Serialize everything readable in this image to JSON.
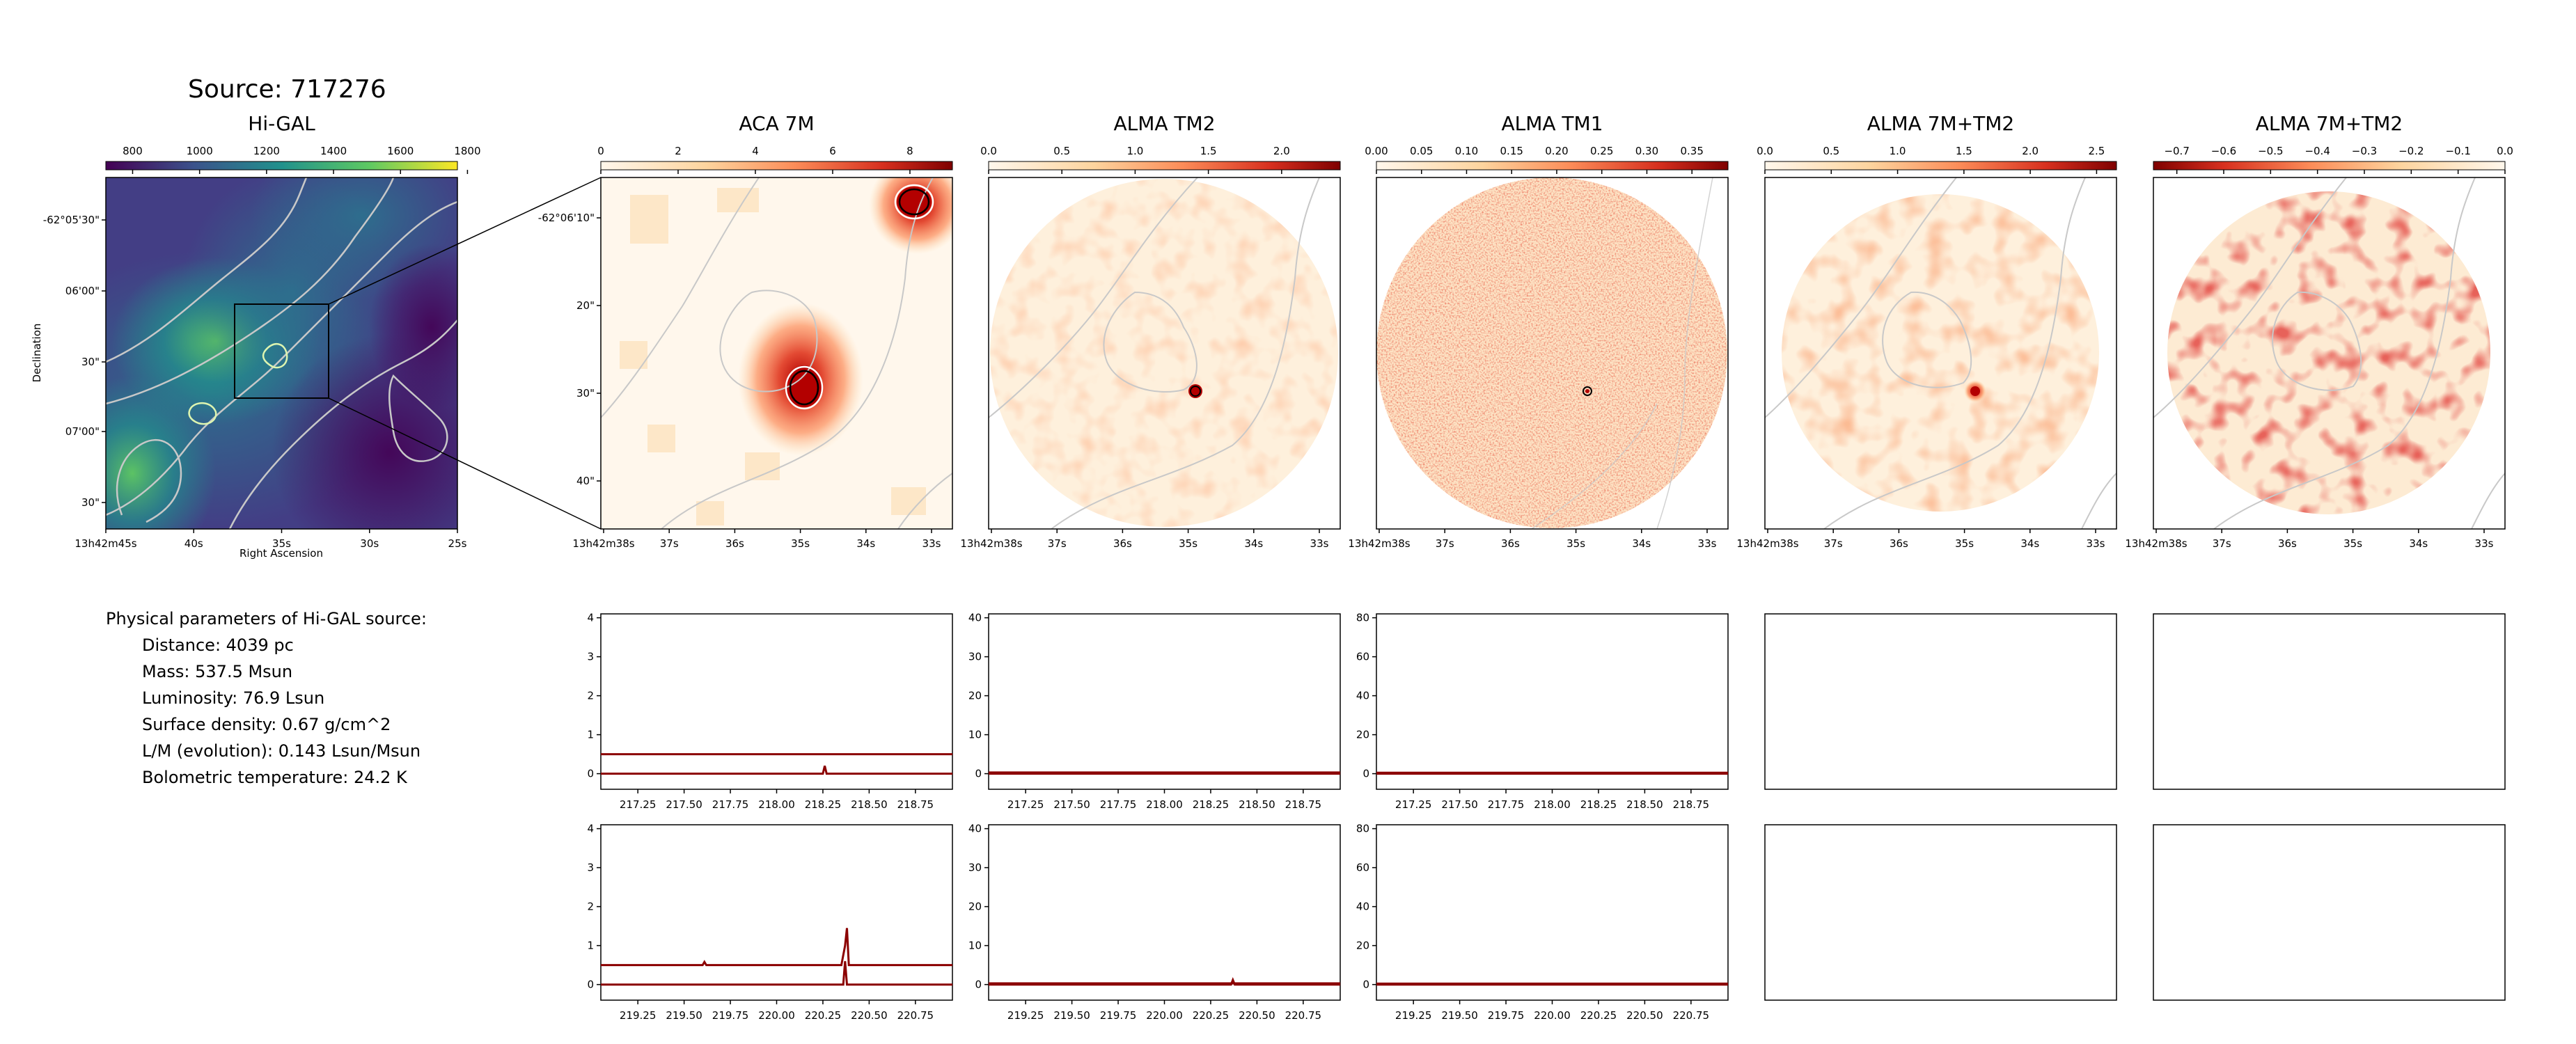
{
  "figure_title": "Source: 717276",
  "parameters": {
    "heading": "Physical parameters of Hi-GAL source:",
    "items": [
      "Distance: 4039 pc",
      "Mass: 537.5 Msun",
      "Luminosity: 76.9 Lsun",
      "Surface density: 0.67 g/cm^2",
      "L/M (evolution): 0.143 Lsun/Msun",
      "Bolometric temperature: 24.2 K"
    ]
  },
  "colors": {
    "spectrum": "#8b0000",
    "contour": "#c8c8c8",
    "box": "#000000"
  },
  "chart_data": [
    {
      "type": "heatmap",
      "title": "Hi-GAL",
      "colormap": "viridis",
      "colorbar_ticks": [
        "800",
        "1000",
        "1200",
        "1400",
        "1600",
        "1800"
      ],
      "colorbar_range": [
        720,
        1770
      ],
      "xlabel": "Right Ascension",
      "ylabel": "Declination",
      "x_ticks": [
        "13h42m45s",
        "40s",
        "35s",
        "30s",
        "25s"
      ],
      "y_ticks": [
        "-62°05'30\"",
        "06'00\"",
        "30\"",
        "07'00\"",
        "30\""
      ],
      "grid": false
    },
    {
      "type": "heatmap",
      "title": "ACA 7M",
      "colormap": "OrRd",
      "colorbar_ticks": [
        "0",
        "2",
        "4",
        "6",
        "8"
      ],
      "colorbar_range": [
        0,
        9.1
      ],
      "x_ticks": [
        "13h42m38s",
        "37s",
        "36s",
        "35s",
        "34s",
        "33s"
      ],
      "y_ticks": [
        "-62°06'10\"",
        "20\"",
        "30\"",
        "40\""
      ],
      "grid": false
    },
    {
      "type": "heatmap",
      "title": "ALMA TM2",
      "colormap": "OrRd",
      "colorbar_ticks": [
        "0.0",
        "0.5",
        "1.0",
        "1.5",
        "2.0"
      ],
      "colorbar_range": [
        0,
        2.4
      ],
      "x_ticks": [
        "13h42m38s",
        "37s",
        "36s",
        "35s",
        "34s",
        "33s"
      ],
      "grid": false
    },
    {
      "type": "heatmap",
      "title": "ALMA TM1",
      "colormap": "OrRd",
      "colorbar_ticks": [
        "0.00",
        "0.05",
        "0.10",
        "0.15",
        "0.20",
        "0.25",
        "0.30",
        "0.35"
      ],
      "colorbar_range": [
        0,
        0.39
      ],
      "x_ticks": [
        "13h42m38s",
        "37s",
        "36s",
        "35s",
        "34s",
        "33s"
      ],
      "grid": false
    },
    {
      "type": "heatmap",
      "title": "ALMA 7M+TM2",
      "colormap": "OrRd",
      "colorbar_ticks": [
        "0.0",
        "0.5",
        "1.0",
        "1.5",
        "2.0",
        "2.5"
      ],
      "colorbar_range": [
        0,
        2.65
      ],
      "x_ticks": [
        "13h42m38s",
        "37s",
        "36s",
        "35s",
        "34s",
        "33s"
      ],
      "grid": false
    },
    {
      "type": "heatmap",
      "title": "ALMA 7M+TM2",
      "colormap": "OrRd_reversed",
      "colorbar_ticks": [
        "−0.7",
        "−0.6",
        "−0.5",
        "−0.4",
        "−0.3",
        "−0.2",
        "−0.1",
        "0.0"
      ],
      "colorbar_range": [
        -0.75,
        0
      ],
      "x_ticks": [
        "13h42m38s",
        "37s",
        "36s",
        "35s",
        "34s",
        "33s"
      ],
      "grid": false
    },
    {
      "type": "line",
      "panel": "ACA 7M spectrum, window 1",
      "xlim": [
        217.05,
        218.95
      ],
      "ylim": [
        -0.4,
        4.1
      ],
      "x_ticks": [
        "217.25",
        "217.50",
        "217.75",
        "218.00",
        "218.25",
        "218.50",
        "218.75"
      ],
      "y_ticks": [
        "0",
        "1",
        "2",
        "3",
        "4"
      ],
      "series": [
        {
          "x": [
            217.05,
            218.95
          ],
          "y": [
            0.5,
            0.5
          ]
        },
        {
          "x": [
            217.05,
            218.25,
            218.26,
            218.27,
            218.95
          ],
          "y": [
            0.0,
            0.0,
            0.2,
            0.0,
            0.0
          ]
        }
      ]
    },
    {
      "type": "line",
      "panel": "ALMA TM2 spectrum, window 1",
      "xlim": [
        217.05,
        218.95
      ],
      "ylim": [
        -4,
        41
      ],
      "x_ticks": [
        "217.25",
        "217.50",
        "217.75",
        "218.00",
        "218.25",
        "218.50",
        "218.75"
      ],
      "y_ticks": [
        "0",
        "10",
        "20",
        "30",
        "40"
      ],
      "series": [
        {
          "x": [
            217.05,
            218.95
          ],
          "y": [
            0.3,
            0.3
          ]
        },
        {
          "x": [
            217.05,
            218.95
          ],
          "y": [
            0,
            0
          ]
        }
      ]
    },
    {
      "type": "line",
      "panel": "ALMA TM1 spectrum, window 1",
      "xlim": [
        217.05,
        218.95
      ],
      "ylim": [
        -8,
        82
      ],
      "x_ticks": [
        "217.25",
        "217.50",
        "217.75",
        "218.00",
        "218.25",
        "218.50",
        "218.75"
      ],
      "y_ticks": [
        "0",
        "20",
        "40",
        "60",
        "80"
      ],
      "series": [
        {
          "x": [
            217.05,
            218.95
          ],
          "y": [
            0.5,
            0.5
          ]
        },
        {
          "x": [
            217.05,
            218.95
          ],
          "y": [
            0,
            0
          ]
        }
      ]
    },
    {
      "type": "line",
      "panel": "ACA 7M spectrum, window 2",
      "xlim": [
        219.05,
        220.95
      ],
      "ylim": [
        -0.4,
        4.1
      ],
      "x_ticks": [
        "219.25",
        "219.50",
        "219.75",
        "220.00",
        "220.25",
        "220.50",
        "220.75"
      ],
      "y_ticks": [
        "0",
        "1",
        "2",
        "3",
        "4"
      ],
      "series": [
        {
          "x": [
            219.05,
            219.6,
            219.61,
            219.62,
            220.35,
            220.37,
            220.38,
            220.39,
            220.95
          ],
          "y": [
            0.5,
            0.5,
            0.58,
            0.5,
            0.5,
            1.0,
            1.45,
            0.5,
            0.5
          ]
        },
        {
          "x": [
            219.05,
            220.36,
            220.37,
            220.38,
            220.95
          ],
          "y": [
            0.0,
            0.0,
            0.6,
            0.0,
            0.0
          ]
        }
      ]
    },
    {
      "type": "line",
      "panel": "ALMA TM2 spectrum, window 2",
      "xlim": [
        219.05,
        220.95
      ],
      "ylim": [
        -4,
        41
      ],
      "x_ticks": [
        "219.25",
        "219.50",
        "219.75",
        "220.00",
        "220.25",
        "220.50",
        "220.75"
      ],
      "y_ticks": [
        "0",
        "10",
        "20",
        "30",
        "40"
      ],
      "series": [
        {
          "x": [
            219.05,
            220.95
          ],
          "y": [
            0.3,
            0.3
          ]
        },
        {
          "x": [
            219.05,
            220.36,
            220.37,
            220.38,
            220.95
          ],
          "y": [
            0,
            0,
            1.2,
            0,
            0
          ]
        }
      ]
    },
    {
      "type": "line",
      "panel": "ALMA TM1 spectrum, window 2",
      "xlim": [
        219.05,
        220.95
      ],
      "ylim": [
        -8,
        82
      ],
      "x_ticks": [
        "219.25",
        "219.50",
        "219.75",
        "220.00",
        "220.25",
        "220.50",
        "220.75"
      ],
      "y_ticks": [
        "0",
        "20",
        "40",
        "60",
        "80"
      ],
      "series": [
        {
          "x": [
            219.05,
            220.95
          ],
          "y": [
            0.5,
            0.5
          ]
        },
        {
          "x": [
            219.05,
            220.95
          ],
          "y": [
            0,
            0
          ]
        }
      ]
    }
  ]
}
